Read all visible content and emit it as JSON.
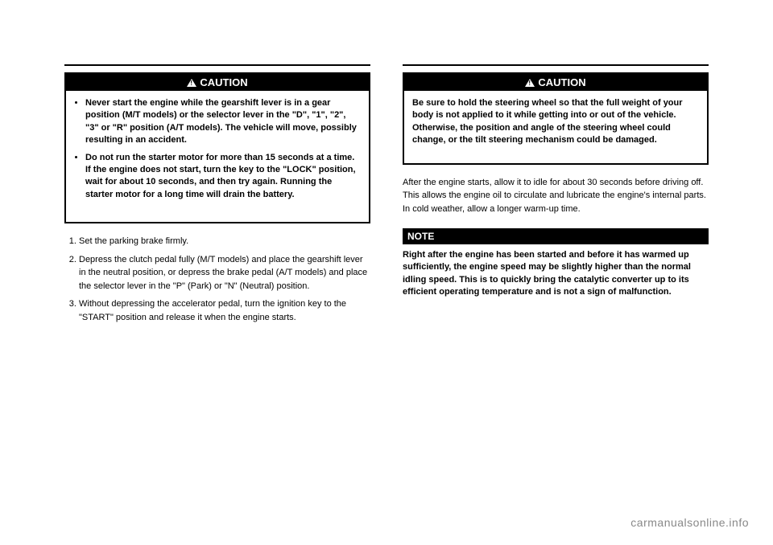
{
  "left": {
    "caution": {
      "label": "CAUTION",
      "items": [
        "Never start the engine while the gearshift lever is in a gear position (M/T models) or the selector lever in the \"D\", \"1\", \"2\", \"3\" or \"R\" position (A/T models). The vehicle will move, possibly resulting in an accident.",
        "Do not run the starter motor for more than 15 seconds at a time. If the engine does not start, turn the key to the \"LOCK\" position, wait for about 10 seconds, and then try again. Running the starter motor for a long time will drain the battery."
      ]
    },
    "steps": [
      "Set the parking brake firmly.",
      "Depress the clutch pedal fully (M/T models) and place the gearshift lever in the neutral position, or depress the brake pedal (A/T models) and place the selector lever in the \"P\" (Park) or \"N\" (Neutral) position.",
      "Without depressing the accelerator pedal, turn the ignition key to the \"START\" position and release it when the engine starts."
    ]
  },
  "right": {
    "caution": {
      "label": "CAUTION",
      "text": "Be sure to hold the steering wheel so that the full weight of your body is not applied to it while getting into or out of the vehicle. Otherwise, the position and angle of the steering wheel could change, or the tilt steering mechanism could be damaged."
    },
    "paragraph": "After the engine starts, allow it to idle for about 30 seconds before driving off. This allows the engine oil to circulate and lubricate the engine's internal parts. In cold weather, allow a longer warm-up time.",
    "note": {
      "label": "NOTE",
      "text": "Right after the engine has been started and before it has warmed up sufficiently, the engine speed may be slightly higher than the normal idling speed. This is to quickly bring the catalytic converter up to its efficient operating temperature and is not a sign of malfunction."
    }
  },
  "footer": "carmanualsonline.info",
  "colors": {
    "black": "#000000",
    "white": "#ffffff",
    "footer_gray": "#888888"
  }
}
